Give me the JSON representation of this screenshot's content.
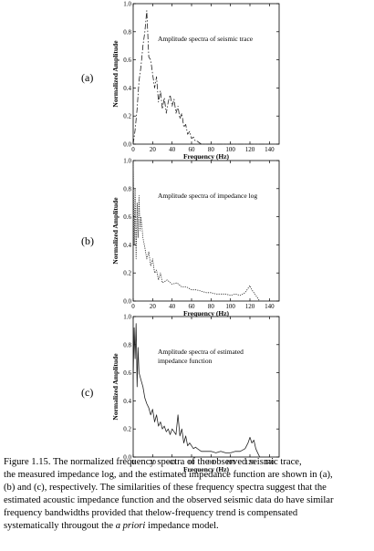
{
  "chart_data": [
    {
      "type": "line",
      "panel_label": "(a)",
      "title": "Amplitude spectra of seismic trace",
      "xlabel": "Frequency (Hz)",
      "ylabel": "Normalized Amplitude",
      "xlim": [
        0,
        150
      ],
      "ylim": [
        0,
        1.0
      ],
      "xticks": [
        "0",
        "20",
        "40",
        "60",
        "80",
        "100",
        "120",
        "140"
      ],
      "yticks": [
        "0.0",
        "0.2",
        "0.4",
        "0.6",
        "0.8",
        "1.0"
      ],
      "line_style": "dash-dot",
      "series": [
        {
          "x": [
            0,
            2,
            4,
            6,
            8,
            10,
            12,
            14,
            16,
            18,
            20,
            22,
            24,
            26,
            28,
            30,
            32,
            34,
            36,
            38,
            40,
            42,
            44,
            46,
            48,
            50,
            52,
            54,
            56,
            58,
            60,
            62,
            64,
            66,
            68,
            70,
            75,
            80,
            90,
            100,
            110,
            120,
            130,
            140
          ],
          "y": [
            0.0,
            0.1,
            0.25,
            0.45,
            0.55,
            0.7,
            0.8,
            0.95,
            0.62,
            0.6,
            0.5,
            0.4,
            0.48,
            0.3,
            0.38,
            0.25,
            0.33,
            0.22,
            0.3,
            0.35,
            0.27,
            0.32,
            0.22,
            0.27,
            0.18,
            0.22,
            0.12,
            0.14,
            0.07,
            0.09,
            0.04,
            0.05,
            0.02,
            0.02,
            0.01,
            0.0,
            0.0,
            0.0,
            0.0,
            0.0,
            0.0,
            0.0,
            0.0,
            0.0
          ]
        }
      ]
    },
    {
      "type": "line",
      "panel_label": "(b)",
      "title": "Amplitude spectra of impedance log",
      "xlabel": "Frequency (Hz)",
      "ylabel": "Normalized Amplitude",
      "xlim": [
        0,
        150
      ],
      "ylim": [
        0,
        1.0
      ],
      "xticks": [
        "0",
        "20",
        "40",
        "60",
        "80",
        "100",
        "120",
        "140"
      ],
      "yticks": [
        "0.0",
        "0.2",
        "0.4",
        "0.6",
        "0.8",
        "1.0"
      ],
      "line_style": "dotted",
      "series": [
        {
          "x": [
            0,
            1,
            2,
            3,
            4,
            5,
            6,
            7,
            8,
            10,
            12,
            14,
            16,
            18,
            20,
            22,
            24,
            26,
            28,
            30,
            35,
            40,
            45,
            50,
            55,
            60,
            65,
            70,
            75,
            80,
            85,
            90,
            95,
            100,
            105,
            110,
            115,
            118,
            120,
            122,
            124,
            126,
            128,
            130
          ],
          "y": [
            1.0,
            0.4,
            0.8,
            0.3,
            0.7,
            0.45,
            0.75,
            0.5,
            0.6,
            0.45,
            0.38,
            0.3,
            0.35,
            0.25,
            0.3,
            0.2,
            0.22,
            0.15,
            0.2,
            0.13,
            0.15,
            0.12,
            0.13,
            0.1,
            0.1,
            0.08,
            0.08,
            0.07,
            0.06,
            0.06,
            0.05,
            0.05,
            0.05,
            0.04,
            0.05,
            0.04,
            0.06,
            0.09,
            0.11,
            0.08,
            0.06,
            0.04,
            0.02,
            0.0
          ]
        }
      ]
    },
    {
      "type": "line",
      "panel_label": "(c)",
      "title": "Amplitude spectra of estimated\n impedance function",
      "xlabel": "Frequency (Hz)",
      "ylabel": "Normalized Amplitude",
      "xlim": [
        0,
        150
      ],
      "ylim": [
        0,
        1.0
      ],
      "xticks": [
        "0",
        "20",
        "40",
        "60",
        "80",
        "100",
        "120",
        "140"
      ],
      "yticks": [
        "0.0",
        "0.2",
        "0.4",
        "0.6",
        "0.8",
        "1.0"
      ],
      "line_style": "solid",
      "series": [
        {
          "x": [
            0,
            1,
            2,
            3,
            4,
            5,
            6,
            8,
            10,
            12,
            14,
            16,
            18,
            20,
            22,
            24,
            26,
            28,
            30,
            32,
            34,
            36,
            38,
            40,
            42,
            44,
            46,
            48,
            50,
            52,
            54,
            56,
            58,
            60,
            62,
            64,
            66,
            68,
            70,
            75,
            80,
            85,
            90,
            95,
            100,
            105,
            110,
            115,
            118,
            120,
            122,
            124,
            126,
            128,
            130
          ],
          "y": [
            0.55,
            0.92,
            0.7,
            0.95,
            0.5,
            0.78,
            0.6,
            0.55,
            0.5,
            0.42,
            0.38,
            0.35,
            0.3,
            0.34,
            0.25,
            0.3,
            0.22,
            0.25,
            0.2,
            0.22,
            0.18,
            0.2,
            0.16,
            0.2,
            0.18,
            0.16,
            0.3,
            0.15,
            0.2,
            0.1,
            0.15,
            0.08,
            0.1,
            0.08,
            0.06,
            0.07,
            0.06,
            0.05,
            0.04,
            0.04,
            0.04,
            0.03,
            0.04,
            0.03,
            0.03,
            0.04,
            0.04,
            0.06,
            0.1,
            0.14,
            0.1,
            0.12,
            0.06,
            0.03,
            0.0
          ]
        }
      ]
    }
  ],
  "caption": {
    "lines": [
      [
        "Figure 1.15.  The normalized frequency spectra of the observed seismic trace,"
      ],
      [
        "the measured impedance log, and the estimated impedance function are shown in (a),"
      ],
      [
        "(b) and (c), respectively.  The similarities of these frequency spectra suggest that the"
      ],
      [
        "estimated acoustic impedance function and the observed seismic data do have similar"
      ],
      [
        "frequency bandwidths provided that thelow-frequency trend is compensated"
      ],
      [
        "systematically througout the ",
        "a priori",
        " impedance model."
      ]
    ]
  }
}
